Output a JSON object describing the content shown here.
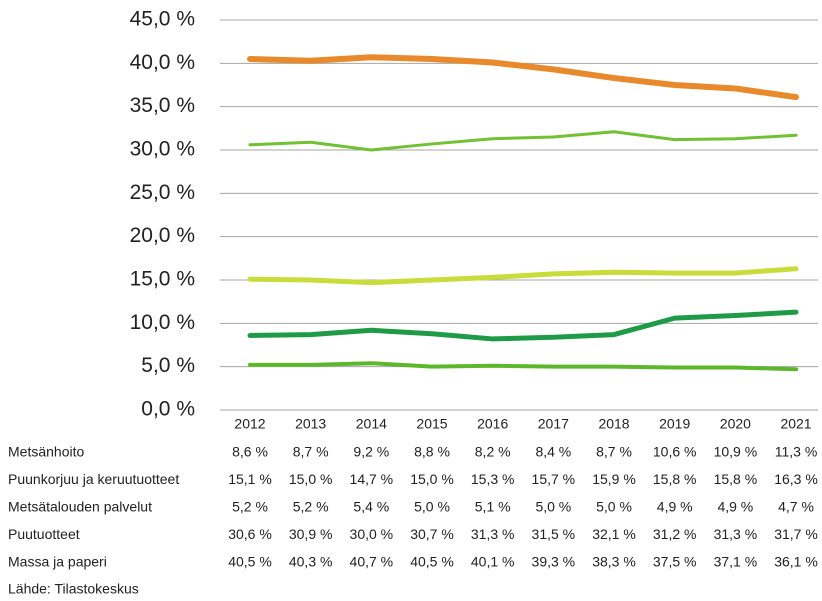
{
  "chart_data": {
    "type": "line",
    "categories": [
      "2012",
      "2013",
      "2014",
      "2015",
      "2016",
      "2017",
      "2018",
      "2019",
      "2020",
      "2021"
    ],
    "series": [
      {
        "name": "Metsänhoito",
        "color": "#1f9b48",
        "width": 5,
        "values": [
          8.6,
          8.7,
          9.2,
          8.8,
          8.2,
          8.4,
          8.7,
          10.6,
          10.9,
          11.3
        ],
        "value_labels": [
          "8,6 %",
          "8,7 %",
          "9,2 %",
          "8,8 %",
          "8,2 %",
          "8,4 %",
          "8,7 %",
          "10,6 %",
          "10,9 %",
          "11,3 %"
        ]
      },
      {
        "name": "Puunkorjuu ja keruutuotteet",
        "color": "#c8dc3a",
        "width": 5,
        "values": [
          15.1,
          15.0,
          14.7,
          15.0,
          15.3,
          15.7,
          15.9,
          15.8,
          15.8,
          16.3
        ],
        "value_labels": [
          "15,1 %",
          "15,0 %",
          "14,7 %",
          "15,0 %",
          "15,3 %",
          "15,7 %",
          "15,9 %",
          "15,8 %",
          "15,8 %",
          "16,3 %"
        ]
      },
      {
        "name": "Metsätalouden palvelut",
        "color": "#5cb82a",
        "width": 4,
        "values": [
          5.2,
          5.2,
          5.4,
          5.0,
          5.1,
          5.0,
          5.0,
          4.9,
          4.9,
          4.7
        ],
        "value_labels": [
          "5,2 %",
          "5,2 %",
          "5,4 %",
          "5,0 %",
          "5,1 %",
          "5,0 %",
          "5,0 %",
          "4,9 %",
          "4,9 %",
          "4,7 %"
        ]
      },
      {
        "name": "Puutuotteet",
        "color": "#72c034",
        "width": 3,
        "values": [
          30.6,
          30.9,
          30.0,
          30.7,
          31.3,
          31.5,
          32.1,
          31.2,
          31.3,
          31.7
        ],
        "value_labels": [
          "30,6 %",
          "30,9 %",
          "30,0 %",
          "30,7 %",
          "31,3 %",
          "31,5 %",
          "32,1 %",
          "31,2 %",
          "31,3 %",
          "31,7 %"
        ]
      },
      {
        "name": "Massa ja paperi",
        "color": "#e8892b",
        "width": 6,
        "values": [
          40.5,
          40.3,
          40.7,
          40.5,
          40.1,
          39.3,
          38.3,
          37.5,
          37.1,
          36.1
        ],
        "value_labels": [
          "40,5 %",
          "40,3 %",
          "40,7 %",
          "40,5 %",
          "40,1 %",
          "39,3 %",
          "38,3 %",
          "37,5 %",
          "37,1 %",
          "36,1 %"
        ]
      }
    ],
    "ylim": [
      0,
      45
    ],
    "yticks": [
      {
        "value": 0,
        "label": "0,0 %"
      },
      {
        "value": 5,
        "label": "5,0 %"
      },
      {
        "value": 10,
        "label": "10,0 %"
      },
      {
        "value": 15,
        "label": "15,0 %"
      },
      {
        "value": 20,
        "label": "20,0 %"
      },
      {
        "value": 25,
        "label": "25,0 %"
      },
      {
        "value": 30,
        "label": "30,0 %"
      },
      {
        "value": 35,
        "label": "35,0 %"
      },
      {
        "value": 40,
        "label": "40,0 %"
      },
      {
        "value": 45,
        "label": "45,0 %"
      }
    ],
    "grid": true,
    "source": "Lähde: Tilastokeskus"
  }
}
